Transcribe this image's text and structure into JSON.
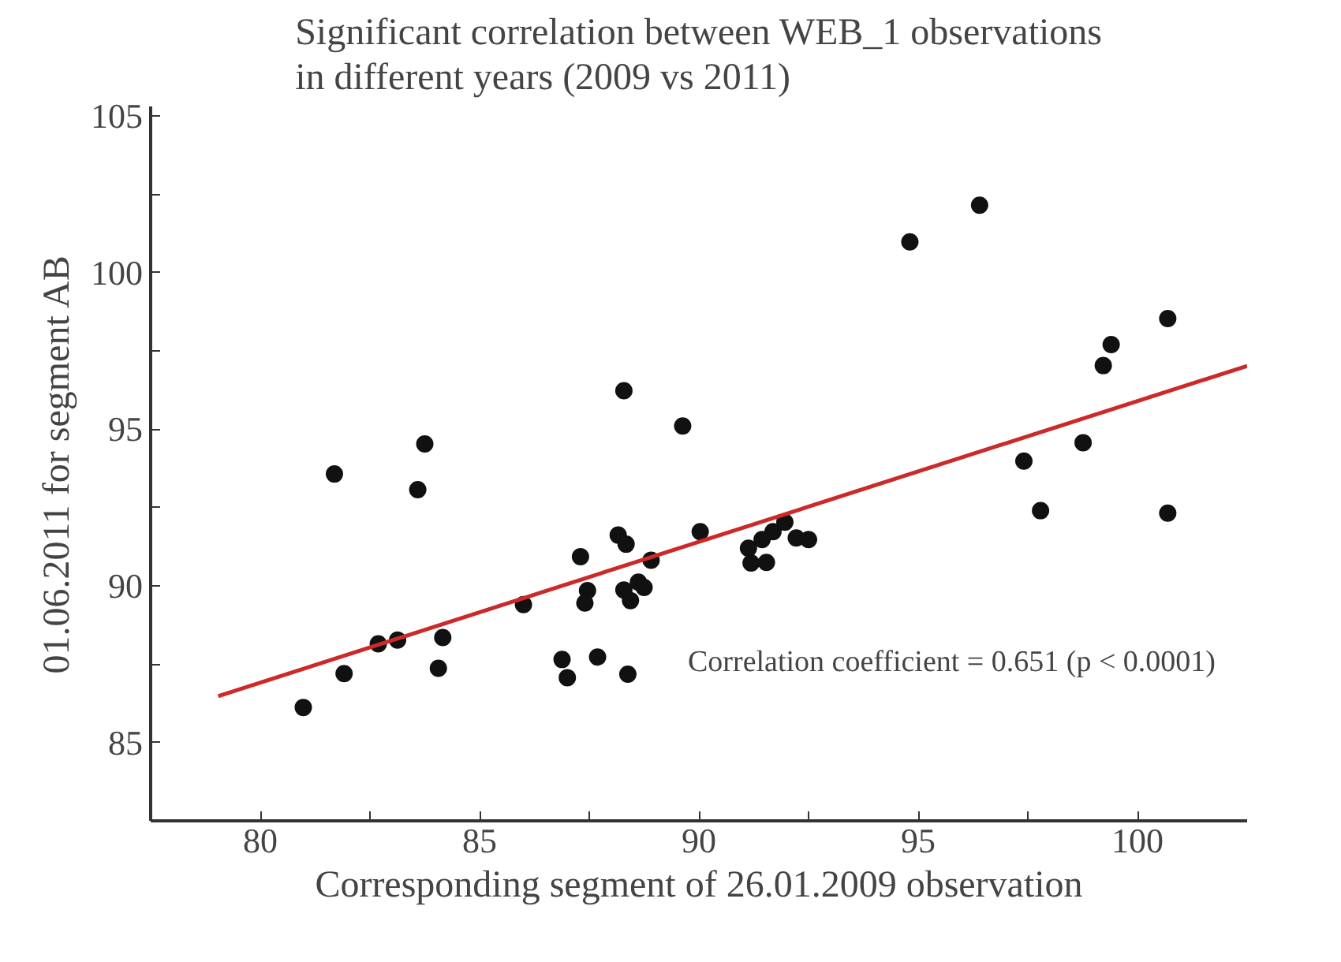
{
  "chart_data": {
    "type": "scatter",
    "title": "Significant correlation between WEB_1 observations\nin different years (2009 vs 2011)",
    "xlabel": "Corresponding segment of 26.01.2009 observation",
    "ylabel": "01.06.2011 for segment AB",
    "annotations": [
      "Correlation coefficient = 0.651 (p < 0.0001)"
    ],
    "xlim": [
      77.5,
      102.5
    ],
    "ylim": [
      82.5,
      105.3
    ],
    "xticks": [
      {
        "value": 77.5,
        "label": null
      },
      80,
      {
        "value": 82.5,
        "label": null
      },
      85,
      {
        "value": 87.5,
        "label": null
      },
      90,
      {
        "value": 92.5,
        "label": null
      },
      95,
      {
        "value": 97.5,
        "label": null
      },
      100
    ],
    "yticks": [
      {
        "value": 82.5,
        "label": null
      },
      85,
      {
        "value": 87.5,
        "label": null
      },
      90,
      {
        "value": 92.5,
        "label": null
      },
      95,
      {
        "value": 97.5,
        "label": null
      },
      100,
      {
        "value": 102.5,
        "label": null
      },
      105
    ],
    "grid": false,
    "series": [
      {
        "marker": "circle",
        "color": "#111111",
        "x": [
          88.29,
          89.63,
          83.75,
          94.81,
          96.4,
          100.69,
          99.4,
          99.22,
          98.76,
          97.41,
          81.69,
          83.59,
          90.03,
          88.16,
          88.34,
          88.91,
          91.13,
          91.19,
          87.3,
          87.46,
          87.4,
          86.0,
          88.29,
          88.44,
          88.62,
          88.75,
          84.16,
          83.13,
          82.69,
          84.06,
          81.91,
          80.98,
          86.88,
          87.0,
          87.69,
          88.38,
          91.54,
          91.44,
          91.69,
          91.96,
          92.22,
          92.5,
          97.79,
          100.69
        ],
        "values": [
          96.23,
          95.1,
          94.53,
          100.98,
          102.15,
          98.53,
          97.7,
          97.03,
          94.57,
          93.98,
          93.57,
          93.07,
          91.73,
          91.62,
          91.33,
          90.82,
          91.2,
          90.73,
          90.93,
          89.85,
          89.45,
          89.4,
          89.87,
          89.53,
          90.12,
          89.95,
          88.35,
          88.27,
          88.15,
          87.37,
          87.2,
          86.12,
          87.65,
          87.07,
          87.73,
          87.18,
          90.75,
          91.48,
          91.73,
          92.03,
          91.53,
          91.48,
          92.4,
          92.32
        ]
      },
      {
        "type": "line",
        "color": "#cc2a2a",
        "line_style": "solid",
        "x": [
          79.04,
          102.5
        ],
        "values": [
          86.48,
          97.02
        ]
      }
    ]
  }
}
